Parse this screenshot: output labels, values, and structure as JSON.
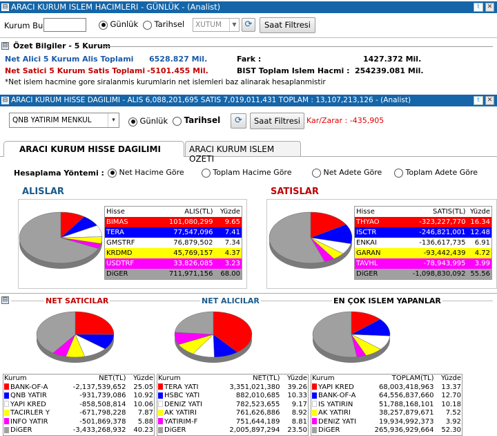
{
  "top": {
    "title": "ARACI KURUM ISLEM HACIMLERI - GÜNLÜK - (Analist)",
    "kurum_bul_label": "Kurum Bul",
    "kurum_bul_value": "",
    "gunluk": "Günlük",
    "tarihsel": "Tarihsel",
    "xutum": "XUTUM",
    "saat_filtresi": "Saat Filtresi"
  },
  "ozet": {
    "title": "Özet Bilgiler - 5 Kurum",
    "alici_label": "Net Alici 5 Kurum Alis Toplami",
    "alici_value": "6528.827 Mil.",
    "satici_label": "Net Satici 5 Kurum Satis Toplami",
    "satici_value": "-5101.455 Mil.",
    "fark_label": "Fark :",
    "fark_value": "1427.372 Mil.",
    "bist_label": "BIST Toplam Islem Hacmi :",
    "bist_value": "254239.081 Mil.",
    "note": "*Net islem hacmine gore siralanmis kurumlarin net islemleri baz alinarak hesaplanmistir"
  },
  "mid": {
    "title": "ARACI KURUM HISSE DAGILIMI - ALIS 6,088,201,695  SATIS 7,019,011,431  TOPLAM : 13,107,213,126 - (Analist)",
    "kurum_select": "QNB YATIRIM MENKUL",
    "gunluk": "Günlük",
    "tarihsel": "Tarihsel",
    "saat_filtresi": "Saat Filtresi",
    "karzarar": "Kar/Zarar : -435,905",
    "tab1": "ARACI KURUM HISSE DAGILIMI",
    "tab2": "ARACI KURUM ISLEM OZETI",
    "hesaplama": "Hesaplama Yöntemi :",
    "opt1": "Net Hacime Göre",
    "opt2": "Toplam Hacime Göre",
    "opt3": "Net Adete Göre",
    "opt4": "Toplam Adete Göre",
    "alislar": "ALISLAR",
    "satislar": "SATISLAR",
    "alis_headers": [
      "Hisse",
      "ALIS(TL)",
      "Yüzde"
    ],
    "satis_headers": [
      "Hisse",
      "SATIS(TL)",
      "Yüzde"
    ],
    "alis_rows": [
      {
        "name": "BIMAS",
        "val": "101,080,299",
        "pct": "9.65",
        "bg": "#ff0000",
        "fg": "#ffffff"
      },
      {
        "name": "TERA",
        "val": "77,547,096",
        "pct": "7.41",
        "bg": "#0000ff",
        "fg": "#ffffff"
      },
      {
        "name": "GMSTRF",
        "val": "76,879,502",
        "pct": "7.34",
        "bg": "#ffffff",
        "fg": "#000000"
      },
      {
        "name": "KRDMD",
        "val": "45,769,157",
        "pct": "4.37",
        "bg": "#ffff00",
        "fg": "#000000"
      },
      {
        "name": "USDTRF",
        "val": "33,826,085",
        "pct": "3.23",
        "bg": "#ff00ff",
        "fg": "#ffffff"
      },
      {
        "name": "DiGER",
        "val": "711,971,156",
        "pct": "68.00",
        "bg": "#a0a0a0",
        "fg": "#000000"
      }
    ],
    "satis_rows": [
      {
        "name": "THYAO",
        "val": "-323,227,770",
        "pct": "16.34",
        "bg": "#ff0000",
        "fg": "#ffffff"
      },
      {
        "name": "ISCTR",
        "val": "-246,821,001",
        "pct": "12.48",
        "bg": "#0000ff",
        "fg": "#ffffff"
      },
      {
        "name": "ENKAI",
        "val": "-136,617,735",
        "pct": "6.91",
        "bg": "#ffffff",
        "fg": "#000000"
      },
      {
        "name": "GARAN",
        "val": "-93,442,439",
        "pct": "4.72",
        "bg": "#ffff00",
        "fg": "#000000"
      },
      {
        "name": "TAVHL",
        "val": "-78,943,995",
        "pct": "3.99",
        "bg": "#ff00ff",
        "fg": "#ffffff"
      },
      {
        "name": "DiGER",
        "val": "-1,098,830,092",
        "pct": "55.56",
        "bg": "#a0a0a0",
        "fg": "#000000"
      }
    ]
  },
  "bottom": {
    "net_saticilar": "NET SATICILAR",
    "net_alicilar": "NET ALICILAR",
    "en_cok": "EN ÇOK ISLEM YAPANLAR",
    "t1_headers": [
      "Kurum",
      "NET(TL)",
      "Yüzde"
    ],
    "t2_headers": [
      "Kurum",
      "NET(TL)",
      "Yüzde"
    ],
    "t3_headers": [
      "Kurum",
      "TOPLAM(TL)",
      "Yüzde"
    ],
    "t1_rows": [
      {
        "name": "BANK-OF-A",
        "val": "-2,137,539,652",
        "pct": "25.05",
        "c": "#ff0000"
      },
      {
        "name": "QNB YATIR",
        "val": "-931,739,086",
        "pct": "10.92",
        "c": "#0000ff"
      },
      {
        "name": "YAPI KRED",
        "val": "-858,508,814",
        "pct": "10.06",
        "c": "#ffffff"
      },
      {
        "name": "TACIRLER Y",
        "val": "-671,798,228",
        "pct": "7.87",
        "c": "#ffff00"
      },
      {
        "name": "INFO YATIR",
        "val": "-501,869,378",
        "pct": "5.88",
        "c": "#ff00ff"
      },
      {
        "name": "DiGER",
        "val": "-3,433,268,932",
        "pct": "40.23",
        "c": "#a0a0a0"
      }
    ],
    "t2_rows": [
      {
        "name": "TERA YATI",
        "val": "3,351,021,380",
        "pct": "39.26",
        "c": "#ff0000"
      },
      {
        "name": "HSBC YATI",
        "val": "882,010,685",
        "pct": "10.33",
        "c": "#0000ff"
      },
      {
        "name": "DENIZ YATI",
        "val": "782,523,655",
        "pct": "9.17",
        "c": "#ffffff"
      },
      {
        "name": "AK YATIRI",
        "val": "761,626,886",
        "pct": "8.92",
        "c": "#ffff00"
      },
      {
        "name": "YATIRIM-F",
        "val": "751,644,189",
        "pct": "8.81",
        "c": "#ff00ff"
      },
      {
        "name": "DiGER",
        "val": "2,005,897,294",
        "pct": "23.50",
        "c": "#a0a0a0"
      }
    ],
    "t3_rows": [
      {
        "name": "YAPI KRED",
        "val": "68,003,418,963",
        "pct": "13.37",
        "c": "#ff0000"
      },
      {
        "name": "BANK-OF-A",
        "val": "64,556,837,660",
        "pct": "12.70",
        "c": "#0000ff"
      },
      {
        "name": "IS YATIRIN",
        "val": "51,788,168,101",
        "pct": "10.18",
        "c": "#ffffff"
      },
      {
        "name": "AK YATIRI",
        "val": "38,257,879,671",
        "pct": "7.52",
        "c": "#ffff00"
      },
      {
        "name": "DENIZ YATI",
        "val": "19,934,992,373",
        "pct": "3.92",
        "c": "#ff00ff"
      },
      {
        "name": "DiGER",
        "val": "265,936,929,664",
        "pct": "52.30",
        "c": "#a0a0a0"
      }
    ]
  }
}
